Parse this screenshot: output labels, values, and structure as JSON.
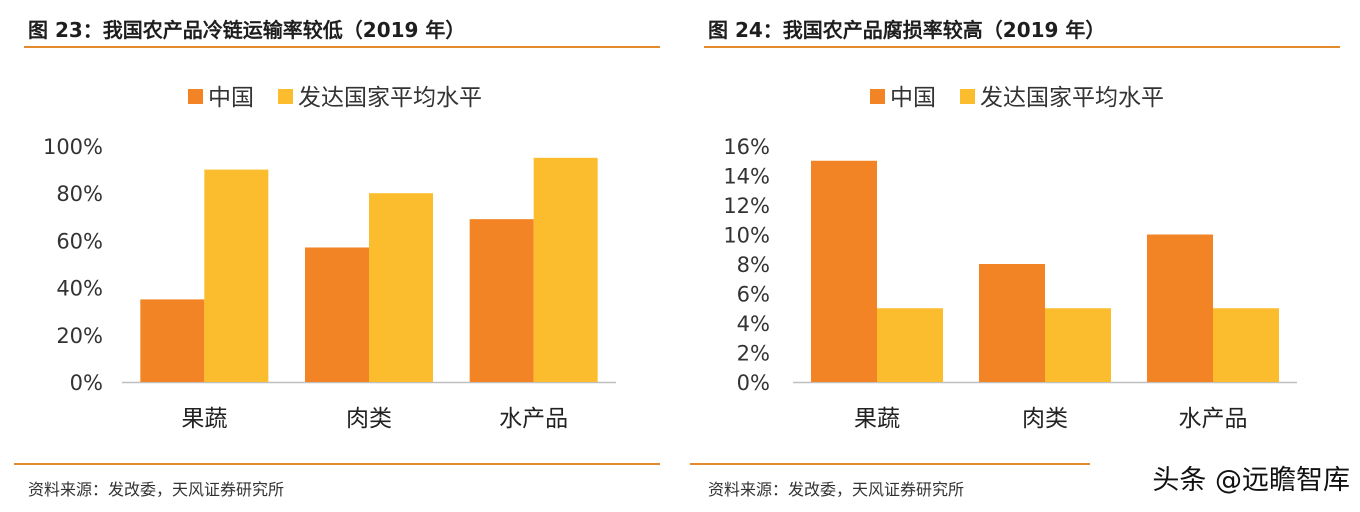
{
  "watermark": "头条 @远瞻智库",
  "charts": [
    {
      "title": "图 23：我国农产品冷链运输率较低（2019 年）",
      "source": "资料来源：发改委，天风证券研究所"
    },
    {
      "title": "图 24：我国农产品腐损率较高（2019 年）",
      "source": "资料来源：发改委，天风证券研究所"
    }
  ],
  "colors": {
    "china": "#f28425",
    "developed": "#fbbd2d",
    "accent": "#e38b2c"
  },
  "chart_data": [
    {
      "type": "bar",
      "title": "我国农产品冷链运输率较低（2019 年）",
      "categories": [
        "果蔬",
        "肉类",
        "水产品"
      ],
      "series": [
        {
          "name": "中国",
          "values": [
            35,
            57,
            69
          ]
        },
        {
          "name": "发达国家平均水平",
          "values": [
            90,
            80,
            95
          ]
        }
      ],
      "ylim": [
        0,
        100
      ],
      "yticks": [
        0,
        20,
        40,
        60,
        80,
        100
      ],
      "tick_labels": [
        "0%",
        "20%",
        "40%",
        "60%",
        "80%",
        "100%"
      ],
      "unit": "%",
      "legend": "top-center",
      "grid": false
    },
    {
      "type": "bar",
      "title": "我国农产品腐损率较高（2019 年）",
      "categories": [
        "果蔬",
        "肉类",
        "水产品"
      ],
      "series": [
        {
          "name": "中国",
          "values": [
            15,
            8,
            10
          ]
        },
        {
          "name": "发达国家平均水平",
          "values": [
            5,
            5,
            5
          ]
        }
      ],
      "ylim": [
        0,
        16
      ],
      "yticks": [
        0,
        2,
        4,
        6,
        8,
        10,
        12,
        14,
        16
      ],
      "tick_labels": [
        "0%",
        "2%",
        "4%",
        "6%",
        "8%",
        "10%",
        "12%",
        "14%",
        "16%"
      ],
      "unit": "%",
      "legend": "top-center",
      "grid": false
    }
  ]
}
